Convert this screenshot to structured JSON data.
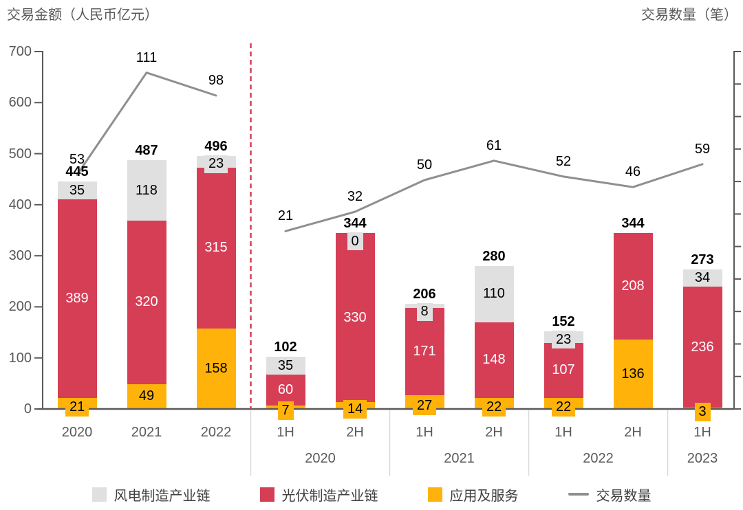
{
  "chart_data": {
    "type": "bar",
    "subtype": "stacked-bar-with-line",
    "title_left": "交易金额（人民币亿元）",
    "title_right": "交易数量（笔）",
    "value_axis": {
      "side": "left",
      "min": 0,
      "max": 700,
      "step": 100,
      "tick_labels": [
        "0",
        "100",
        "200",
        "300",
        "400",
        "500",
        "600",
        "700"
      ]
    },
    "count_axis": {
      "side": "right",
      "labels_visible": false,
      "tick_count": 12,
      "mapped_range": [
        -80,
        123
      ]
    },
    "categories": [
      "2020",
      "2021",
      "2022",
      "1H",
      "2H",
      "1H",
      "2H",
      "1H",
      "2H",
      "1H"
    ],
    "groups": [
      {
        "label": "2020",
        "from": 3,
        "to": 4
      },
      {
        "label": "2021",
        "from": 5,
        "to": 6
      },
      {
        "label": "2022",
        "from": 7,
        "to": 8
      },
      {
        "label": "2023",
        "from": 9,
        "to": 9
      }
    ],
    "separator_after_index": 2,
    "series": [
      {
        "name": "应用及服务",
        "stack_order": "bottom",
        "color": "#FFB30A",
        "text_color": "#000000",
        "values": [
          21,
          49,
          158,
          7,
          14,
          27,
          22,
          22,
          136,
          3
        ],
        "labels": [
          "21",
          "49",
          "158",
          "7",
          "14",
          "27",
          "22",
          "22",
          "136",
          "3"
        ]
      },
      {
        "name": "光伏制造产业链",
        "stack_order": "middle",
        "color": "#D63E56",
        "text_color": "#FFFFFF",
        "values": [
          389,
          320,
          315,
          60,
          330,
          171,
          148,
          107,
          208,
          236
        ],
        "labels": [
          "389",
          "320",
          "315",
          "60",
          "330",
          "171",
          "148",
          "107",
          "208",
          "236"
        ]
      },
      {
        "name": "风电制造产业链",
        "stack_order": "top",
        "color": "#E0E0E0",
        "text_color": "#000000",
        "values": [
          35,
          118,
          23,
          35,
          0,
          8,
          110,
          23,
          0,
          34
        ],
        "labels": [
          "35",
          "118",
          "23",
          "35",
          "0",
          "8",
          "110",
          "23",
          "",
          "34"
        ]
      }
    ],
    "totals": [
      "445",
      "487",
      "496",
      "102",
      "344",
      "206",
      "280",
      "152",
      "344",
      "273"
    ],
    "line": {
      "name": "交易数量",
      "color": "#8F8F8F",
      "values": [
        53,
        111,
        98,
        21,
        32,
        50,
        61,
        52,
        46,
        59
      ],
      "labels": [
        "53",
        "111",
        "98",
        "21",
        "32",
        "50",
        "61",
        "52",
        "46",
        "59"
      ],
      "segments": [
        [
          0,
          2
        ],
        [
          3,
          9
        ]
      ]
    },
    "legend": [
      {
        "label": "风电制造产业链",
        "swatch": "square",
        "color": "#E0E0E0"
      },
      {
        "label": "光伏制造产业链",
        "swatch": "square",
        "color": "#D63E56"
      },
      {
        "label": "应用及服务",
        "swatch": "square",
        "color": "#FFB30A"
      },
      {
        "label": "交易数量",
        "swatch": "line",
        "color": "#8F8F8F"
      }
    ],
    "colors": {
      "axis": "#595959",
      "group_divider": "#D9D9D9",
      "separator": "#D63E56",
      "label": "#000000",
      "muted_label": "#595959"
    }
  }
}
